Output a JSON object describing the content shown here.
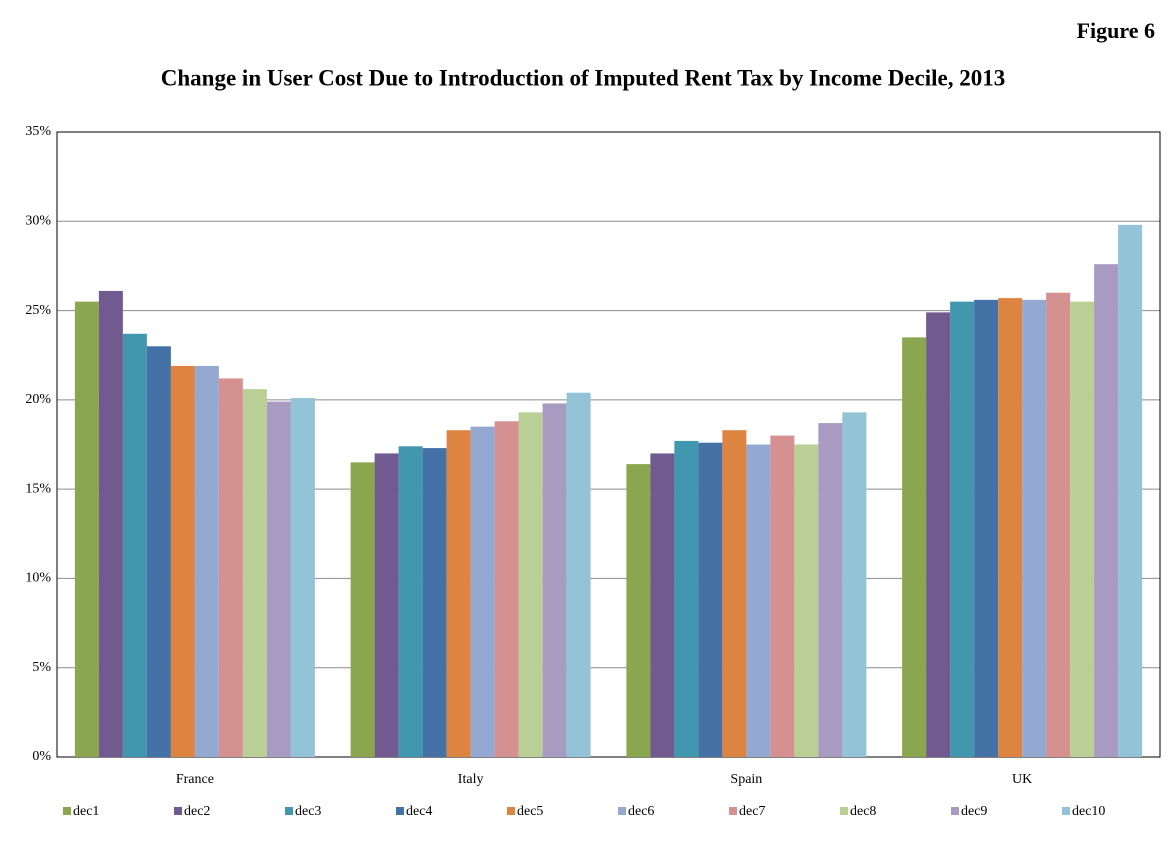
{
  "chart_data": {
    "type": "bar",
    "figure_label": "Figure 6",
    "title": "Change in User Cost Due to Introduction of Imputed Rent Tax by Income Decile, 2013",
    "categories": [
      "France",
      "Italy",
      "Spain",
      "UK"
    ],
    "series": [
      {
        "name": "dec1",
        "color": "#8aa64e",
        "values": [
          25.5,
          16.5,
          16.4,
          23.5
        ]
      },
      {
        "name": "dec2",
        "color": "#715a8f",
        "values": [
          26.1,
          17.0,
          17.0,
          24.9
        ]
      },
      {
        "name": "dec3",
        "color": "#4197ae",
        "values": [
          23.7,
          17.4,
          17.7,
          25.5
        ]
      },
      {
        "name": "dec4",
        "color": "#4472a6",
        "values": [
          23.0,
          17.3,
          17.6,
          25.6
        ]
      },
      {
        "name": "dec5",
        "color": "#dd8540",
        "values": [
          21.9,
          18.3,
          18.3,
          25.7
        ]
      },
      {
        "name": "dec6",
        "color": "#93a9d1",
        "values": [
          21.9,
          18.5,
          17.5,
          25.6
        ]
      },
      {
        "name": "dec7",
        "color": "#d49190",
        "values": [
          21.2,
          18.8,
          18.0,
          26.0
        ]
      },
      {
        "name": "dec8",
        "color": "#b9cf96",
        "values": [
          20.6,
          19.3,
          17.5,
          25.5
        ]
      },
      {
        "name": "dec9",
        "color": "#a89bc1",
        "values": [
          19.9,
          19.8,
          18.7,
          27.6
        ]
      },
      {
        "name": "dec10",
        "color": "#93c3d6",
        "values": [
          20.1,
          20.4,
          19.3,
          29.8
        ]
      }
    ],
    "ylim": [
      0,
      35
    ],
    "yticks": [
      {
        "value": 0,
        "label": "0%"
      },
      {
        "value": 5,
        "label": "5%"
      },
      {
        "value": 10,
        "label": "10%"
      },
      {
        "value": 15,
        "label": "15%"
      },
      {
        "value": 20,
        "label": "20%"
      },
      {
        "value": 25,
        "label": "25%"
      },
      {
        "value": 30,
        "label": "30%"
      },
      {
        "value": 35,
        "label": "35%"
      }
    ],
    "grid": true,
    "legend": "bottom"
  }
}
